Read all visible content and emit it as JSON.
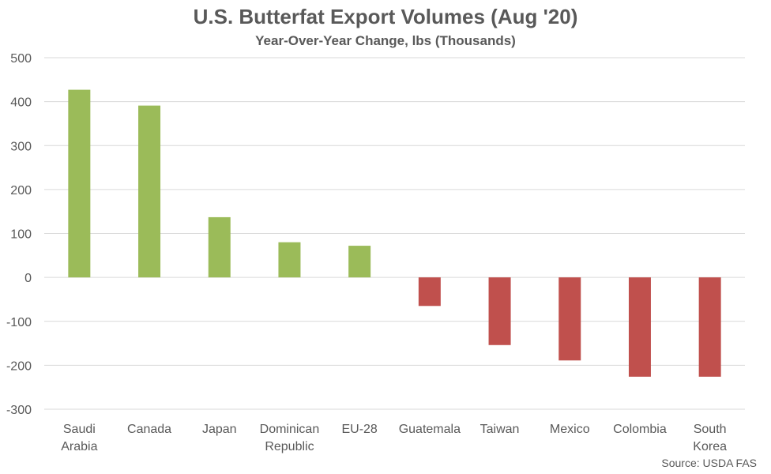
{
  "chart_data": {
    "type": "bar",
    "title": "U.S. Butterfat Export Volumes (Aug '20)",
    "subtitle": "Year-Over-Year Change, lbs (Thousands)",
    "categories": [
      "Saudi Arabia",
      "Canada",
      "Japan",
      "Dominican Republic",
      "EU-28",
      "Guatemala",
      "Taiwan",
      "Mexico",
      "Colombia",
      "South Korea"
    ],
    "category_lines": [
      [
        "Saudi",
        "Arabia"
      ],
      [
        "Canada"
      ],
      [
        "Japan"
      ],
      [
        "Dominican",
        "Republic"
      ],
      [
        "EU-28"
      ],
      [
        "Guatemala"
      ],
      [
        "Taiwan"
      ],
      [
        "Mexico"
      ],
      [
        "Colombia"
      ],
      [
        "South",
        "Korea"
      ]
    ],
    "values": [
      427,
      391,
      137,
      80,
      72,
      -65,
      -154,
      -189,
      -226,
      -226
    ],
    "ylim": [
      -300,
      500
    ],
    "yticks": [
      -300,
      -200,
      -100,
      0,
      100,
      200,
      300,
      400,
      500
    ],
    "grid": true,
    "positive_color": "#9bbb59",
    "negative_color": "#c0504d",
    "source": "Source: USDA FAS"
  }
}
